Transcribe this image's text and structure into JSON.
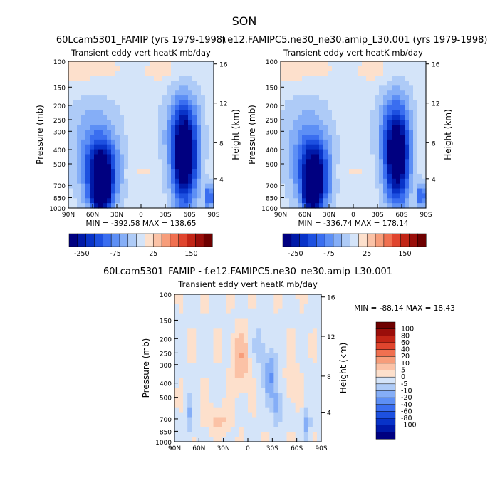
{
  "figure": {
    "title": "SON"
  },
  "colors": {
    "neg": [
      "#000080",
      "#0019a8",
      "#0833c8",
      "#1d50e0",
      "#3a6ef0",
      "#5d8ff5",
      "#85aef7",
      "#aecbf7",
      "#d4e4f9"
    ],
    "pos": [
      "#fde0cc",
      "#fbc2a6",
      "#f79d7a",
      "#f07050",
      "#e0452e",
      "#c22516",
      "#9a0e0a",
      "#6e0000"
    ]
  },
  "chart_data": [
    {
      "type": "heatmap",
      "title": "60Lcam5301_FAMIP (yrs 1979-1998)",
      "subtitle": "Transient eddy vert heatK mb/day",
      "xlabel": "",
      "ylabel": "Pressure (mb)",
      "y2label": "Height (km)",
      "x_ticks": [
        "90N",
        "60N",
        "30N",
        "0",
        "30S",
        "60S",
        "90S"
      ],
      "y_ticks": [
        100,
        150,
        200,
        250,
        300,
        400,
        500,
        700,
        850,
        1000
      ],
      "y2_ticks": [
        16,
        12,
        8,
        4
      ],
      "y_scale": "log",
      "ylim": [
        1000,
        100
      ],
      "stats": "MIN = -392.58   MAX = 138.65",
      "colorbar": {
        "orientation": "horizontal",
        "labels": [
          "-250",
          "-75",
          "25",
          "150"
        ]
      }
    },
    {
      "type": "heatmap",
      "title": "f.e12.FAMIPC5.ne30_ne30.amip_L30.001 (yrs 1979-1998)",
      "subtitle": "Transient eddy vert heatK mb/day",
      "xlabel": "",
      "ylabel": "Pressure (mb)",
      "y2label": "Height (km)",
      "x_ticks": [
        "90N",
        "60N",
        "30N",
        "0",
        "30S",
        "60S",
        "90S"
      ],
      "y_ticks": [
        100,
        150,
        200,
        250,
        300,
        400,
        500,
        700,
        850,
        1000
      ],
      "y2_ticks": [
        16,
        12,
        8,
        4
      ],
      "y_scale": "log",
      "ylim": [
        1000,
        100
      ],
      "stats": "MIN = -336.74   MAX = 178.14",
      "colorbar": {
        "orientation": "horizontal",
        "labels": [
          "-250",
          "-75",
          "25",
          "150"
        ]
      }
    },
    {
      "type": "heatmap",
      "title": "60Lcam5301_FAMIP - f.e12.FAMIPC5.ne30_ne30.amip_L30.001",
      "subtitle": "Transient eddy vert heatK mb/day",
      "xlabel": "",
      "ylabel": "Pressure (mb)",
      "y2label": "Height (km)",
      "x_ticks": [
        "90N",
        "60N",
        "30N",
        "0",
        "30S",
        "60S",
        "90S"
      ],
      "y_ticks": [
        100,
        150,
        200,
        250,
        300,
        400,
        500,
        700,
        850,
        1000
      ],
      "y2_ticks": [
        16,
        12,
        8,
        4
      ],
      "y_scale": "log",
      "ylim": [
        1000,
        100
      ],
      "stats": "MIN = -88.14   MAX = 18.43",
      "colorbar": {
        "orientation": "vertical",
        "labels": [
          "100",
          "80",
          "60",
          "40",
          "20",
          "10",
          "5",
          "0",
          "-5",
          "-10",
          "-20",
          "-40",
          "-60",
          "-80",
          "-100"
        ]
      }
    }
  ]
}
